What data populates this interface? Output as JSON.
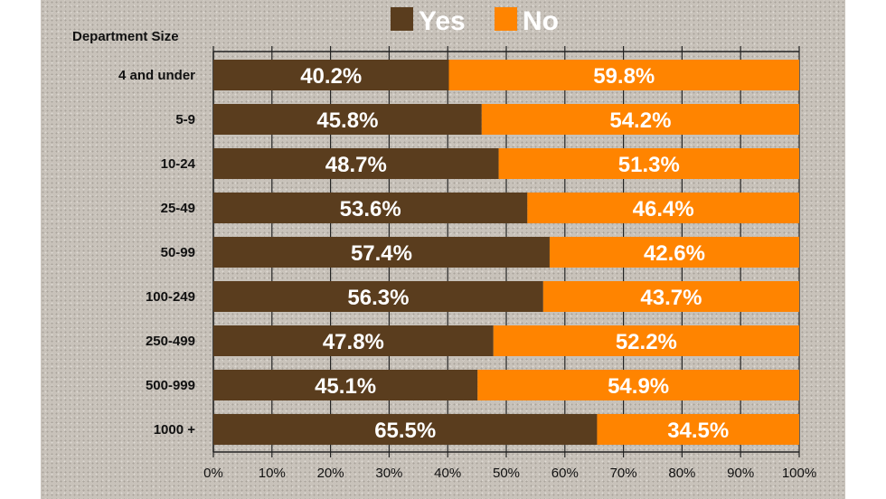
{
  "chart_data": {
    "type": "bar",
    "stacked": true,
    "orientation": "horizontal",
    "title": "",
    "ylabel": "Department Size",
    "xlabel": "",
    "categories": [
      "4 and under",
      "5-9",
      "10-24",
      "25-49",
      "50-99",
      "100-249",
      "250-499",
      "500-999",
      "1000 +"
    ],
    "series": [
      {
        "name": "Yes",
        "color": "#5a3d1e",
        "values": [
          40.2,
          45.8,
          48.7,
          53.6,
          57.4,
          56.3,
          47.8,
          45.1,
          65.5
        ]
      },
      {
        "name": "No",
        "color": "#ff8400",
        "values": [
          59.8,
          54.2,
          51.3,
          46.4,
          42.6,
          43.7,
          52.2,
          54.9,
          34.5
        ]
      }
    ],
    "xlim": [
      0,
      100
    ],
    "xticks": [
      "0%",
      "10%",
      "20%",
      "30%",
      "40%",
      "50%",
      "60%",
      "70%",
      "80%",
      "90%",
      "100%"
    ],
    "legend_position": "top-center",
    "grid": true
  }
}
